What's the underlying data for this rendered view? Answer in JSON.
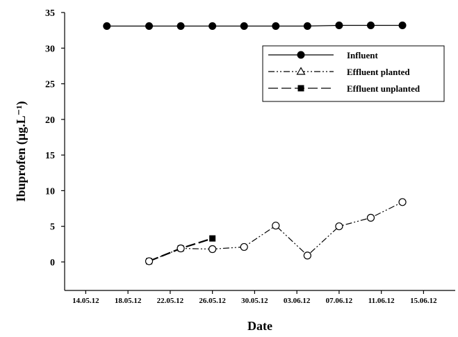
{
  "chart_data": {
    "type": "line",
    "xlabel": "Date",
    "ylabel": "Ibuprofen (µg.L⁻¹)",
    "ylim": [
      -4,
      35
    ],
    "yticks": [
      0,
      5,
      10,
      15,
      20,
      25,
      30,
      35
    ],
    "xlim": [
      "2012-05-12",
      "2012-06-18"
    ],
    "xticks": [
      {
        "date": "2012-05-14",
        "label": "14.05.12"
      },
      {
        "date": "2012-05-18",
        "label": "18.05.12"
      },
      {
        "date": "2012-05-22",
        "label": "22.05.12"
      },
      {
        "date": "2012-05-26",
        "label": "26.05.12"
      },
      {
        "date": "2012-05-30",
        "label": "30.05.12"
      },
      {
        "date": "2012-06-03",
        "label": "03.06.12"
      },
      {
        "date": "2012-06-07",
        "label": "07.06.12"
      },
      {
        "date": "2012-06-11",
        "label": "11.06.12"
      },
      {
        "date": "2012-06-15",
        "label": "15.06.12"
      }
    ],
    "legend_position": "top-right",
    "grid": false,
    "series": [
      {
        "name": "Influent",
        "marker": "filled-circle",
        "line_style": "solid",
        "color": "#000000",
        "points": [
          {
            "x": "2012-05-16",
            "y": 33.1
          },
          {
            "x": "2012-05-20",
            "y": 33.1
          },
          {
            "x": "2012-05-23",
            "y": 33.1
          },
          {
            "x": "2012-05-26",
            "y": 33.1
          },
          {
            "x": "2012-05-29",
            "y": 33.1
          },
          {
            "x": "2012-06-01",
            "y": 33.1
          },
          {
            "x": "2012-06-04",
            "y": 33.1
          },
          {
            "x": "2012-06-07",
            "y": 33.2
          },
          {
            "x": "2012-06-10",
            "y": 33.2
          },
          {
            "x": "2012-06-13",
            "y": 33.2
          }
        ]
      },
      {
        "name": "Effluent planted",
        "marker": "open-triangle",
        "line_style": "dash-dot-dot",
        "color": "#000000",
        "points": [
          {
            "x": "2012-05-20",
            "y": 0.1
          },
          {
            "x": "2012-05-23",
            "y": 1.9
          },
          {
            "x": "2012-05-26",
            "y": 1.8
          },
          {
            "x": "2012-05-29",
            "y": 2.1
          },
          {
            "x": "2012-06-01",
            "y": 5.1
          },
          {
            "x": "2012-06-04",
            "y": 0.9
          },
          {
            "x": "2012-06-07",
            "y": 5.0
          },
          {
            "x": "2012-06-10",
            "y": 6.2
          },
          {
            "x": "2012-06-13",
            "y": 8.4
          }
        ]
      },
      {
        "name": "Effluent unplanted",
        "marker": "filled-square",
        "line_style": "long-dash",
        "color": "#000000",
        "points": [
          {
            "x": "2012-05-20",
            "y": 0.1
          },
          {
            "x": "2012-05-23",
            "y": 1.9
          },
          {
            "x": "2012-05-26",
            "y": 3.3
          }
        ]
      }
    ]
  }
}
